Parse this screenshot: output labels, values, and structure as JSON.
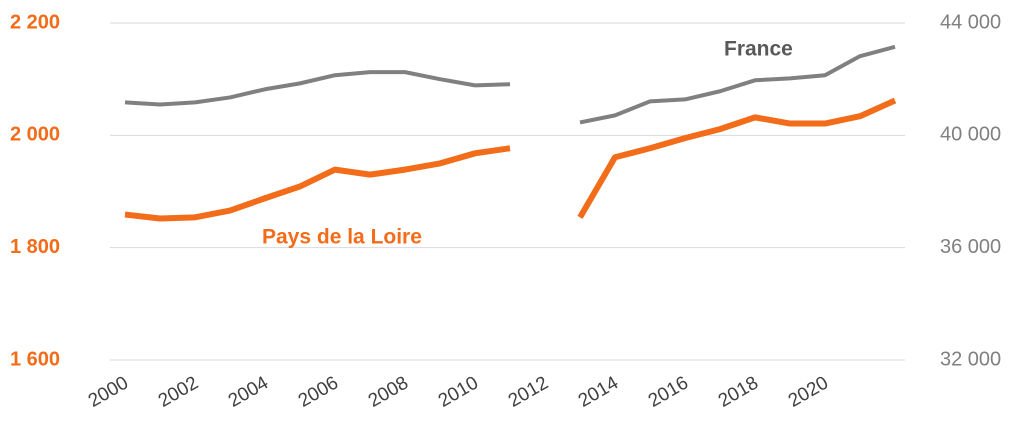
{
  "chart_data": {
    "type": "line",
    "categories": [
      "2000",
      null,
      "2002",
      null,
      "2004",
      null,
      "2006",
      null,
      "2008",
      null,
      "2010",
      null,
      "2012",
      null,
      "2014",
      null,
      "2016",
      null,
      "2018",
      null,
      "2020",
      null,
      null
    ],
    "series": [
      {
        "name": "Pays de la Loire",
        "color": "#f26c1a",
        "axis": "y",
        "values": [
          1859,
          1852,
          1854,
          1866,
          1888,
          1909,
          1939,
          1930,
          1939,
          1950,
          1968,
          1977,
          null,
          1854,
          1961,
          1977,
          1995,
          2011,
          2032,
          2021,
          2021,
          2034,
          2062
        ]
      },
      {
        "name": "France",
        "color": "#808080",
        "axis": "y2",
        "values": [
          41175,
          41100,
          41175,
          41350,
          41640,
          41850,
          42140,
          42250,
          42250,
          42000,
          41780,
          41820,
          null,
          40460,
          40710,
          41210,
          41280,
          41570,
          41960,
          42030,
          42140,
          42820,
          43150
        ]
      }
    ],
    "ylim": [
      1600,
      2200
    ],
    "yticks": [
      {
        "value": 1600,
        "label": "1 600"
      },
      {
        "value": 1800,
        "label": "1 800"
      },
      {
        "value": 2000,
        "label": "2 000"
      },
      {
        "value": 2200,
        "label": "2 200"
      }
    ],
    "y2lim": [
      32000,
      44000
    ],
    "y2ticks": [
      {
        "value": 32000,
        "label": "32 000"
      },
      {
        "value": 36000,
        "label": "36 000"
      },
      {
        "value": 40000,
        "label": "40 000"
      },
      {
        "value": 44000,
        "label": "44 000"
      }
    ],
    "grid": true
  }
}
